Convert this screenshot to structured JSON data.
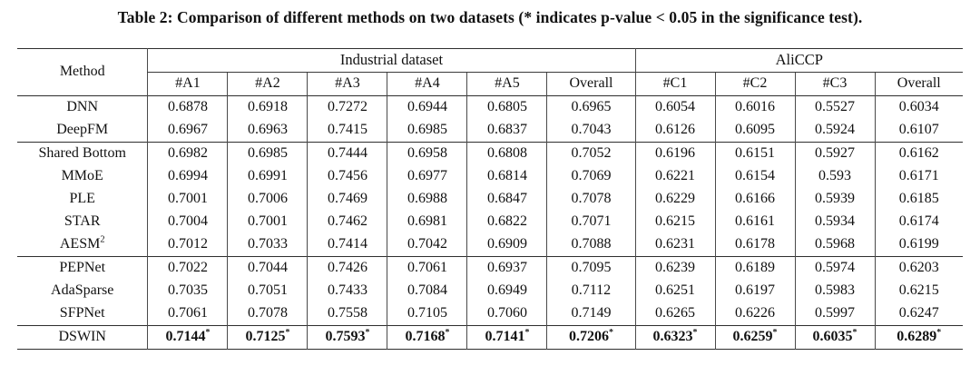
{
  "page_title": "Table 2: Comparison of different methods on two datasets (* indicates p-value < 0.05 in the significance test).",
  "table": {
    "corner_header": "Method",
    "groups": [
      {
        "label": "Industrial dataset",
        "columns": [
          "#A1",
          "#A2",
          "#A3",
          "#A4",
          "#A5",
          "Overall"
        ]
      },
      {
        "label": "AliCCP",
        "columns": [
          "#C1",
          "#C2",
          "#C3",
          "Overall"
        ]
      }
    ],
    "row_groups": [
      {
        "rows": [
          {
            "method": "DNN",
            "values": [
              "0.6878",
              "0.6918",
              "0.7272",
              "0.6944",
              "0.6805",
              "0.6965",
              "0.6054",
              "0.6016",
              "0.5527",
              "0.6034"
            ]
          },
          {
            "method": "DeepFM",
            "values": [
              "0.6967",
              "0.6963",
              "0.7415",
              "0.6985",
              "0.6837",
              "0.7043",
              "0.6126",
              "0.6095",
              "0.5924",
              "0.6107"
            ]
          }
        ]
      },
      {
        "rows": [
          {
            "method": "Shared Bottom",
            "values": [
              "0.6982",
              "0.6985",
              "0.7444",
              "0.6958",
              "0.6808",
              "0.7052",
              "0.6196",
              "0.6151",
              "0.5927",
              "0.6162"
            ]
          },
          {
            "method": "MMoE",
            "values": [
              "0.6994",
              "0.6991",
              "0.7456",
              "0.6977",
              "0.6814",
              "0.7069",
              "0.6221",
              "0.6154",
              "0.593",
              "0.6171"
            ]
          },
          {
            "method": "PLE",
            "values": [
              "0.7001",
              "0.7006",
              "0.7469",
              "0.6988",
              "0.6847",
              "0.7078",
              "0.6229",
              "0.6166",
              "0.5939",
              "0.6185"
            ]
          },
          {
            "method": "STAR",
            "values": [
              "0.7004",
              "0.7001",
              "0.7462",
              "0.6981",
              "0.6822",
              "0.7071",
              "0.6215",
              "0.6161",
              "0.5934",
              "0.6174"
            ]
          },
          {
            "method": "AESM",
            "method_sup": "2",
            "values": [
              "0.7012",
              "0.7033",
              "0.7414",
              "0.7042",
              "0.6909",
              "0.7088",
              "0.6231",
              "0.6178",
              "0.5968",
              "0.6199"
            ]
          }
        ]
      },
      {
        "rows": [
          {
            "method": "PEPNet",
            "values": [
              "0.7022",
              "0.7044",
              "0.7426",
              "0.7061",
              "0.6937",
              "0.7095",
              "0.6239",
              "0.6189",
              "0.5974",
              "0.6203"
            ]
          },
          {
            "method": "AdaSparse",
            "values": [
              "0.7035",
              "0.7051",
              "0.7433",
              "0.7084",
              "0.6949",
              "0.7112",
              "0.6251",
              "0.6197",
              "0.5983",
              "0.6215"
            ]
          },
          {
            "method": "SFPNet",
            "values": [
              "0.7061",
              "0.7078",
              "0.7558",
              "0.7105",
              "0.7060",
              "0.7149",
              "0.6265",
              "0.6226",
              "0.5997",
              "0.6247"
            ]
          }
        ]
      },
      {
        "rows": [
          {
            "method": "DSWIN",
            "bold_values": true,
            "values": [
              "0.7144*",
              "0.7125*",
              "0.7593*",
              "0.7168*",
              "0.7141*",
              "0.7206*",
              "0.6323*",
              "0.6259*",
              "0.6035*",
              "0.6289*"
            ]
          }
        ]
      }
    ]
  }
}
